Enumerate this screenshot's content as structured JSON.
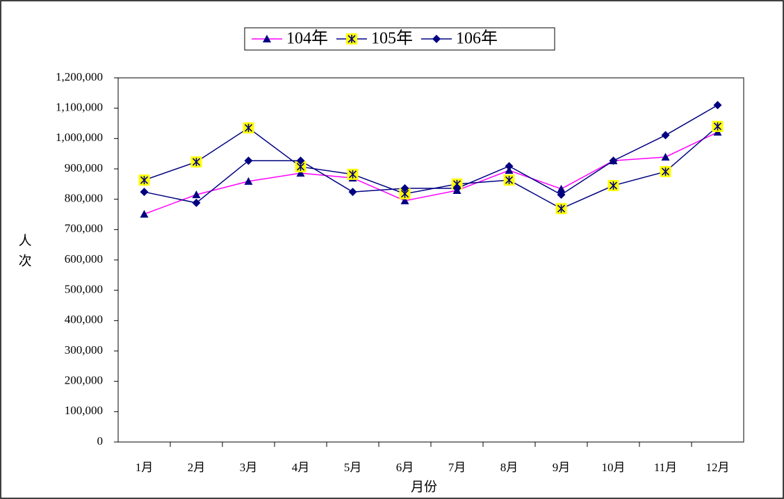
{
  "chart_data": {
    "type": "line",
    "y_label": "人次",
    "x_label": "月份",
    "categories": [
      "1月",
      "2月",
      "3月",
      "4月",
      "5月",
      "6月",
      "7月",
      "8月",
      "9月",
      "10月",
      "11月",
      "12月"
    ],
    "series": [
      {
        "name": "104年",
        "color": "#ff00ff",
        "marker": "triangle",
        "marker_color": "#000080",
        "marker_fill": "#000080",
        "values": [
          751000,
          815000,
          859000,
          886000,
          870000,
          795000,
          829000,
          895000,
          834000,
          927000,
          939000,
          1021000
        ]
      },
      {
        "name": "105年",
        "color": "#000080",
        "marker": "asterisk-square",
        "marker_color": "#000080",
        "marker_fill": "#ffff00",
        "values": [
          863000,
          923000,
          1035000,
          907000,
          882000,
          818000,
          850000,
          863000,
          769000,
          845000,
          891000,
          1040000
        ]
      },
      {
        "name": "106年",
        "color": "#000080",
        "marker": "diamond",
        "marker_color": "#000080",
        "marker_fill": "#000080",
        "values": [
          824000,
          788000,
          927000,
          927000,
          824000,
          836000,
          836000,
          909000,
          815000,
          927000,
          1011000,
          1110000
        ]
      }
    ],
    "ylim": [
      0,
      1200000
    ],
    "yticks": [
      0,
      {
        "value": 100000,
        "label": "100,000"
      },
      {
        "value": 200000,
        "label": "200,000"
      },
      {
        "value": 300000,
        "label": "300,000"
      },
      {
        "value": 400000,
        "label": "400,000"
      },
      {
        "value": 500000,
        "label": "500,000"
      },
      {
        "value": 600000,
        "label": "600,000"
      },
      {
        "value": 700000,
        "label": "700,000"
      },
      {
        "value": 800000,
        "label": "800,000"
      },
      {
        "value": 900000,
        "label": "900,000"
      },
      {
        "value": 1000000,
        "label": "1,000,000"
      },
      {
        "value": 1100000,
        "label": "1,100,000"
      },
      {
        "value": 1200000,
        "label": "1,200,000"
      }
    ],
    "legend": "top"
  }
}
